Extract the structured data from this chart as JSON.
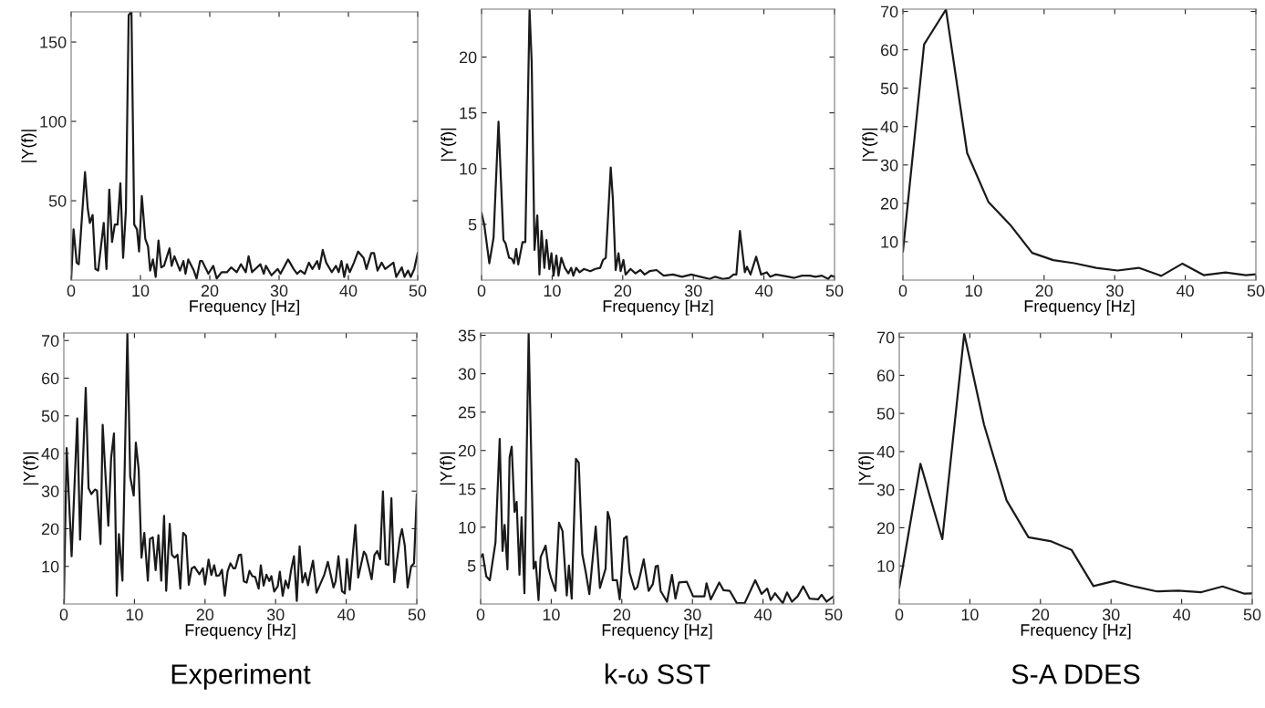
{
  "chart_data": [
    {
      "type": "line",
      "xlabel": "Frequency [Hz]",
      "ylabel": "|Y(f)|",
      "xlim": [
        0,
        50
      ],
      "ylim": [
        0,
        169
      ],
      "xticks": [
        0,
        10,
        20,
        30,
        40,
        50
      ],
      "yticks": [
        50,
        100,
        150
      ],
      "x": [
        0,
        0.35,
        0.8,
        1.1,
        2.0,
        2.4,
        2.7,
        3.1,
        3.5,
        3.9,
        4.7,
        5.1,
        5.5,
        5.9,
        6.3,
        6.7,
        7.1,
        7.5,
        7.9,
        8.3,
        8.7,
        9.1,
        9.5,
        9.8,
        10.2,
        10.7,
        11.1,
        11.4,
        11.8,
        12.2,
        12.6,
        13.0,
        13.4,
        14.2,
        14.5,
        14.9,
        15.7,
        16.2,
        16.5,
        16.9,
        17.7,
        18.1,
        18.6,
        18.9,
        19.8,
        20.5,
        21.0,
        21.7,
        22.5,
        23.1,
        23.9,
        24.5,
        25.2,
        25.6,
        26.1,
        27.3,
        27.8,
        28.1,
        28.9,
        29.8,
        30.2,
        31.3,
        32.1,
        32.6,
        33.1,
        33.7,
        34.3,
        34.8,
        35.5,
        35.8,
        36.3,
        36.8,
        37.6,
        38.2,
        38.6,
        39.0,
        39.4,
        39.8,
        40.2,
        40.8,
        41.4,
        42.2,
        42.6,
        43.3,
        43.7,
        44.2,
        44.8,
        45.3,
        45.9,
        46.5,
        46.9,
        47.7,
        48.1,
        48.6,
        49.0,
        49.5,
        50
      ],
      "series": [
        {
          "color": "#1a1a1a",
          "values": [
            0,
            32,
            11,
            10,
            68,
            45,
            36,
            41,
            7,
            6,
            36,
            7,
            57,
            24,
            35,
            35,
            61,
            14,
            44,
            167,
            169,
            35,
            32,
            18,
            53,
            26,
            21,
            6,
            13,
            2,
            25,
            8,
            9,
            20,
            9,
            15,
            6,
            12,
            4,
            13,
            6,
            1,
            12,
            12,
            4,
            9,
            1,
            5,
            5,
            8,
            5,
            10,
            5,
            15,
            5,
            10,
            4,
            9,
            3,
            7,
            4,
            13,
            7,
            4,
            6,
            4,
            11,
            7,
            12,
            7,
            19,
            11,
            5,
            9,
            5,
            12,
            2,
            10,
            5,
            11,
            18,
            14,
            7,
            17,
            17,
            6,
            11,
            7,
            9,
            11,
            2,
            8,
            2,
            6,
            2,
            7,
            17
          ]
        }
      ]
    },
    {
      "type": "line",
      "xlabel": "Frequency [Hz]",
      "ylabel": "|Y(f)|",
      "xlim": [
        0,
        50
      ],
      "ylim": [
        0,
        24.3
      ],
      "xticks": [
        0,
        10,
        20,
        30,
        40,
        50
      ],
      "yticks": [
        5,
        10,
        15,
        20
      ],
      "x": [
        0,
        0.4,
        1.1,
        1.7,
        2.4,
        3.1,
        3.4,
        3.9,
        4.3,
        4.6,
        4.9,
        5.2,
        5.8,
        6.2,
        6.8,
        7.1,
        7.5,
        7.9,
        8.2,
        8.5,
        8.9,
        9.2,
        9.6,
        9.9,
        10.2,
        10.6,
        10.9,
        11.3,
        11.8,
        12.3,
        12.7,
        13.0,
        13.4,
        13.9,
        14.5,
        15.4,
        16.1,
        16.8,
        17.2,
        17.6,
        18.3,
        18.6,
        19.0,
        19.4,
        19.7,
        20.1,
        20.4,
        21.1,
        21.8,
        22.5,
        23.1,
        23.8,
        24.8,
        25.8,
        27.1,
        28.4,
        29.7,
        31.0,
        32.3,
        33.1,
        34.2,
        35.1,
        35.7,
        36.1,
        36.6,
        37.3,
        37.6,
        38.1,
        38.9,
        39.6,
        40.4,
        40.9,
        41.7,
        42.6,
        43.5,
        44.3,
        45.4,
        46.5,
        47.3,
        48.2,
        49.1,
        49.5,
        50
      ],
      "series": [
        {
          "color": "#1a1a1a",
          "values": [
            6.0,
            4.9,
            1.5,
            3.8,
            14.2,
            3.6,
            3.3,
            2.0,
            1.9,
            1.5,
            2.8,
            1.4,
            3.4,
            3.4,
            24.2,
            19.6,
            2.7,
            5.8,
            0.5,
            4.4,
            1.1,
            3.6,
            1.0,
            2.4,
            0.4,
            2.2,
            0.4,
            2.0,
            1.1,
            0.6,
            1.1,
            0.4,
            1.1,
            0.7,
            1.0,
            0.8,
            1.0,
            1.1,
            1.8,
            2.0,
            10.1,
            7.3,
            0.9,
            2.4,
            0.8,
            1.8,
            0.5,
            1.0,
            0.6,
            0.9,
            0.5,
            0.8,
            0.9,
            0.4,
            0.5,
            0.3,
            0.5,
            0.3,
            0.1,
            0.3,
            0.1,
            0.2,
            0.5,
            0.5,
            4.4,
            0.7,
            1.2,
            0.5,
            2.1,
            0.5,
            0.7,
            0.3,
            0.5,
            0.4,
            0.3,
            0.2,
            0.4,
            0.4,
            0.3,
            0.4,
            0.1,
            0.4,
            0.3
          ]
        }
      ]
    },
    {
      "type": "line",
      "xlabel": "Frequency [Hz]",
      "ylabel": "|Y(f)|",
      "xlim": [
        0,
        50
      ],
      "ylim": [
        0,
        70.6
      ],
      "xticks": [
        0,
        10,
        20,
        30,
        40,
        50
      ],
      "yticks": [
        10,
        20,
        30,
        40,
        50,
        60,
        70
      ],
      "x": [
        0,
        3.0,
        6.1,
        9.1,
        12.1,
        15.2,
        18.3,
        21.3,
        24.3,
        27.4,
        30.4,
        33.4,
        36.6,
        39.6,
        42.6,
        45.7,
        48.6,
        50
      ],
      "series": [
        {
          "color": "#1a1a1a",
          "values": [
            7.5,
            61.4,
            70.5,
            33.1,
            20.4,
            14.4,
            7.1,
            5.2,
            4.4,
            3.2,
            2.5,
            3.2,
            1.1,
            4.3,
            1.3,
            2.0,
            1.3,
            1.5
          ]
        }
      ]
    },
    {
      "type": "line",
      "xlabel": "Frequency [Hz]",
      "ylabel": "|Y(f)|",
      "xlim": [
        0,
        50
      ],
      "ylim": [
        0,
        72
      ],
      "xticks": [
        0,
        10,
        20,
        30,
        40,
        50
      ],
      "yticks": [
        10,
        20,
        30,
        40,
        50,
        60,
        70
      ],
      "annotations": [
        "Experiment"
      ],
      "x": [
        0,
        0.4,
        1.1,
        1.9,
        2.3,
        3.1,
        3.5,
        3.9,
        4.4,
        4.7,
        5.2,
        5.5,
        6.3,
        6.7,
        7.1,
        7.5,
        7.8,
        8.3,
        9.0,
        9.4,
        9.9,
        10.2,
        10.6,
        11.0,
        11.4,
        11.9,
        12.2,
        12.6,
        13.0,
        13.4,
        13.8,
        14.2,
        14.5,
        15.0,
        15.3,
        15.7,
        16.1,
        16.5,
        16.9,
        17.3,
        17.7,
        18.1,
        18.5,
        19.2,
        19.7,
        20.0,
        20.5,
        20.9,
        21.3,
        21.6,
        22.0,
        22.4,
        22.8,
        23.2,
        23.6,
        24.0,
        24.3,
        24.8,
        25.1,
        25.5,
        25.9,
        26.3,
        26.7,
        27.1,
        27.6,
        27.9,
        28.3,
        28.7,
        29.1,
        29.4,
        29.8,
        30.3,
        30.6,
        31.0,
        31.4,
        31.8,
        32.2,
        32.6,
        33.0,
        33.4,
        33.8,
        34.2,
        34.6,
        34.9,
        35.3,
        35.8,
        36.9,
        37.4,
        38.2,
        38.5,
        38.9,
        39.4,
        39.8,
        40.1,
        40.5,
        41.3,
        41.7,
        42.5,
        42.8,
        43.6,
        44.0,
        44.4,
        44.8,
        45.2,
        45.6,
        46.0,
        46.4,
        46.8,
        47.6,
        47.9,
        48.3,
        48.7,
        49.2,
        49.6,
        50
      ],
      "series": [
        {
          "color": "#1a1a1a",
          "values": [
            0.2,
            41.4,
            12.7,
            49.3,
            17.1,
            57.4,
            30.8,
            29.2,
            30.4,
            30.1,
            15.9,
            47.6,
            20.8,
            38.8,
            45.3,
            2.2,
            18.6,
            6.2,
            71.8,
            33.8,
            28.8,
            42.9,
            35.7,
            12.3,
            18.9,
            6.2,
            17.3,
            17.7,
            9.0,
            18.3,
            6.2,
            23.4,
            3.5,
            21.3,
            13.1,
            12.3,
            13.1,
            4.1,
            18.9,
            18.1,
            5.1,
            9.4,
            9.9,
            7.9,
            9.5,
            5.2,
            11.8,
            7.7,
            10.3,
            7.5,
            7.6,
            9.1,
            2.2,
            8.7,
            10.8,
            9.5,
            9.5,
            13.0,
            13.1,
            6.0,
            5.7,
            8.8,
            7.4,
            7.2,
            4.1,
            10.3,
            4.9,
            7.8,
            6.1,
            7.4,
            3.3,
            4.7,
            8.6,
            2.2,
            6.2,
            4.2,
            9.1,
            12.7,
            0.8,
            15.3,
            5.7,
            8.2,
            5.0,
            8.2,
            11.5,
            3.0,
            7.8,
            11.2,
            4.4,
            6.0,
            12.7,
            3.4,
            2.8,
            11.9,
            3.8,
            21.0,
            7.0,
            13.9,
            13.1,
            6.6,
            13.0,
            14.1,
            11.9,
            29.9,
            10.6,
            10.4,
            28.1,
            5.8,
            17.5,
            19.9,
            15.5,
            4.4,
            10.0,
            10.8,
            29.1
          ]
        }
      ]
    },
    {
      "type": "line",
      "xlabel": "Frequency [Hz]",
      "ylabel": "|Y(f)|",
      "xlim": [
        0,
        50
      ],
      "ylim": [
        0,
        35.3
      ],
      "xticks": [
        0,
        10,
        20,
        30,
        40,
        50
      ],
      "yticks": [
        5,
        10,
        15,
        20,
        25,
        30,
        35
      ],
      "annotations": [
        "k-ω SST"
      ],
      "x": [
        0,
        0.3,
        0.8,
        1.3,
        2.1,
        2.7,
        3.1,
        3.4,
        3.8,
        4.1,
        4.4,
        4.8,
        5.1,
        5.5,
        5.8,
        6.2,
        6.8,
        7.5,
        7.8,
        8.2,
        8.5,
        9.2,
        9.6,
        10.0,
        10.6,
        11.1,
        11.6,
        12.2,
        12.5,
        12.9,
        13.5,
        13.9,
        14.4,
        14.9,
        15.4,
        16.3,
        16.9,
        17.7,
        18.0,
        18.3,
        18.7,
        19.3,
        19.7,
        20.3,
        20.7,
        21.1,
        21.8,
        22.2,
        23.1,
        23.8,
        24.4,
        24.8,
        25.1,
        25.5,
        26.4,
        27.1,
        27.6,
        28.1,
        29.2,
        30.1,
        31.7,
        32.0,
        32.6,
        33.8,
        34.4,
        35.3,
        36.3,
        37.4,
        38.9,
        39.8,
        40.6,
        41.1,
        41.7,
        42.8,
        43.4,
        44.1,
        44.9,
        45.7,
        46.6,
        47.8,
        48.3,
        49.0,
        50
      ],
      "series": [
        {
          "color": "#1a1a1a",
          "values": [
            6.1,
            6.5,
            3.6,
            3.1,
            8.0,
            21.5,
            6.9,
            10.3,
            4.5,
            19.1,
            20.5,
            12.0,
            13.3,
            3.8,
            11.3,
            1.4,
            35.2,
            4.6,
            5.5,
            0.5,
            6.1,
            7.6,
            4.7,
            3.3,
            1.7,
            10.6,
            9.5,
            1.1,
            5.0,
            0.7,
            18.9,
            18.4,
            6.5,
            4.1,
            1.3,
            10.1,
            2.1,
            4.6,
            12.0,
            11.0,
            3.1,
            3.1,
            0.6,
            8.5,
            8.8,
            4.1,
            1.9,
            2.2,
            5.8,
            1.7,
            2.6,
            4.9,
            5.0,
            1.7,
            0.3,
            3.8,
            0.7,
            2.8,
            2.9,
            1.0,
            1.0,
            2.7,
            0.6,
            2.8,
            1.8,
            1.7,
            0.1,
            0.1,
            3.1,
            1.3,
            2.0,
            0.5,
            1.4,
            0.1,
            1.5,
            0.3,
            1.0,
            2.3,
            0.7,
            0.6,
            1.2,
            0.3,
            1.0
          ]
        }
      ]
    },
    {
      "type": "line",
      "xlabel": "Frequency [Hz]",
      "ylabel": "|Y(f)|",
      "xlim": [
        0,
        50
      ],
      "ylim": [
        0,
        71.1
      ],
      "xticks": [
        0,
        10,
        20,
        30,
        40,
        50
      ],
      "yticks": [
        10,
        20,
        30,
        40,
        50,
        60,
        70
      ],
      "annotations": [
        "S-A DDES"
      ],
      "x": [
        0,
        3.0,
        6.1,
        9.2,
        12.0,
        15.2,
        18.3,
        21.4,
        24.4,
        27.5,
        30.4,
        33.5,
        36.5,
        39.5,
        42.8,
        45.8,
        48.9,
        50
      ],
      "series": [
        {
          "color": "#1a1a1a",
          "values": [
            4.3,
            36.8,
            17.0,
            70.9,
            47.1,
            27.2,
            17.5,
            16.5,
            14.2,
            4.7,
            6.0,
            4.5,
            3.3,
            3.5,
            3.1,
            4.6,
            2.7,
            2.8
          ]
        }
      ]
    }
  ]
}
